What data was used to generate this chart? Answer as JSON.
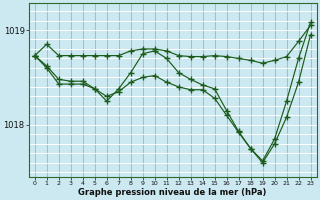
{
  "title": "Graphe pression niveau de la mer (hPa)",
  "bg_color": "#cce8f0",
  "grid_color_v": "#f0a0a0",
  "grid_color_h": "#ffffff",
  "line_color": "#1a5c1a",
  "ylabel_ticks": [
    1018,
    1019
  ],
  "x_ticks": [
    0,
    1,
    2,
    3,
    4,
    5,
    6,
    7,
    8,
    9,
    10,
    11,
    12,
    13,
    14,
    15,
    16,
    17,
    18,
    19,
    20,
    21,
    22,
    23
  ],
  "line1": [
    1018.73,
    1018.85,
    1018.73,
    1018.73,
    1018.73,
    1018.73,
    1018.73,
    1018.73,
    1018.78,
    1018.8,
    1018.8,
    1018.78,
    1018.73,
    1018.72,
    1018.72,
    1018.73,
    1018.72,
    1018.7,
    1018.68,
    1018.65,
    1018.68,
    1018.72,
    1018.88,
    1019.05
  ],
  "line2": [
    1018.73,
    1018.6,
    1018.43,
    1018.43,
    1018.43,
    1018.38,
    1018.25,
    1018.38,
    1018.55,
    1018.75,
    1018.78,
    1018.7,
    1018.55,
    1018.48,
    1018.42,
    1018.38,
    1018.15,
    1017.93,
    1017.75,
    1017.62,
    1017.85,
    1018.25,
    1018.7,
    1019.08
  ],
  "line3_x": [
    0,
    1,
    2,
    3,
    4,
    5,
    6,
    7,
    8,
    9,
    10,
    11,
    12,
    13,
    14,
    15,
    16,
    17,
    18,
    19,
    20,
    21,
    22,
    23
  ],
  "line3": [
    1018.73,
    1018.62,
    1018.48,
    1018.46,
    1018.46,
    1018.38,
    1018.3,
    1018.35,
    1018.45,
    1018.5,
    1018.52,
    1018.45,
    1018.4,
    1018.37,
    1018.37,
    1018.28,
    1018.1,
    1017.92,
    1017.75,
    1017.6,
    1017.8,
    1018.08,
    1018.45,
    1018.95
  ]
}
